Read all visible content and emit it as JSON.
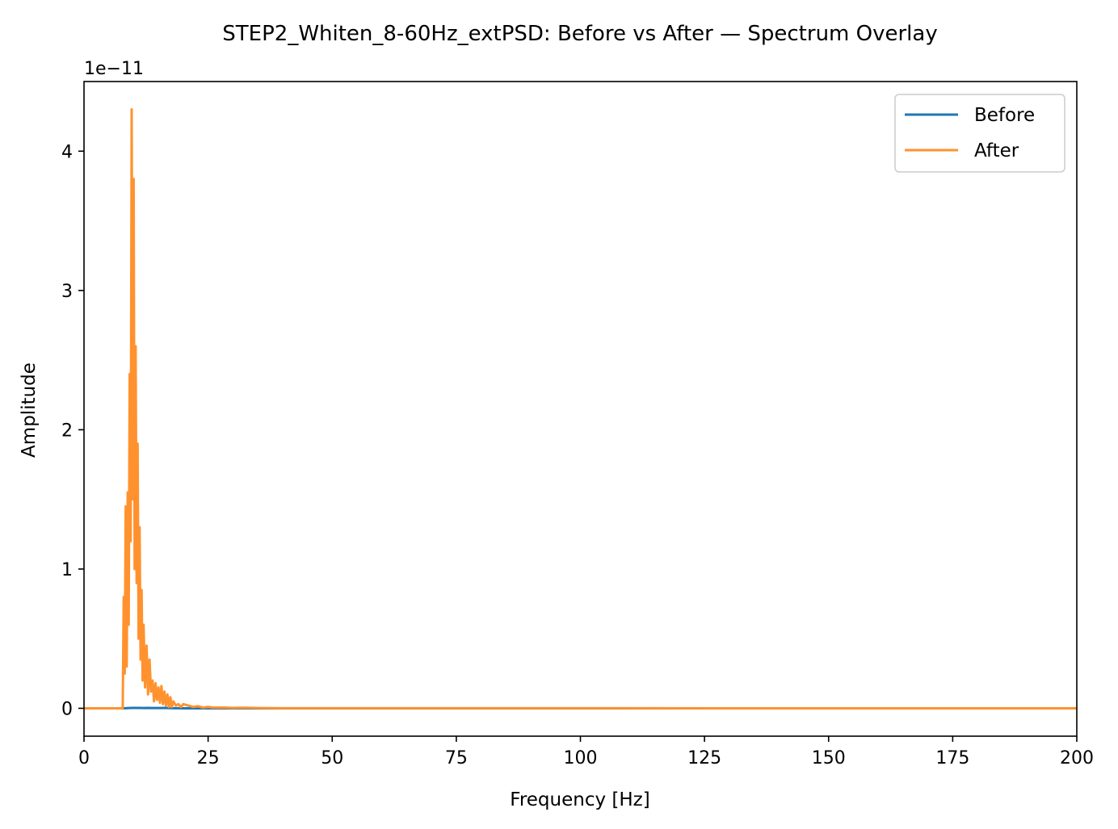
{
  "chart_data": {
    "type": "line",
    "title": "STEP2_Whiten_8-60Hz_extPSD: Before vs After — Spectrum Overlay",
    "xlabel": "Frequency [Hz]",
    "ylabel": "Amplitude",
    "offset_text": "1e−11",
    "xlim": [
      0,
      200
    ],
    "ylim": [
      -0.2,
      4.5
    ],
    "x_ticks": [
      0,
      25,
      50,
      75,
      100,
      125,
      150,
      175,
      200
    ],
    "x_tick_labels": [
      "0",
      "25",
      "50",
      "75",
      "100",
      "125",
      "150",
      "175",
      "200"
    ],
    "y_ticks": [
      0,
      1,
      2,
      3,
      4
    ],
    "y_tick_labels": [
      "0",
      "1",
      "2",
      "3",
      "4"
    ],
    "legend_position": "upper-right",
    "grid": false,
    "series": [
      {
        "name": "Before",
        "color": "#1f77b4",
        "x": [
          0,
          8,
          9,
          10,
          11,
          12,
          13,
          14,
          15,
          16,
          17,
          18,
          19,
          20,
          200
        ],
        "y": [
          0,
          0,
          0.002,
          0.003,
          0.003,
          0.002,
          0.003,
          0.002,
          0.002,
          0.003,
          0.002,
          0.001,
          0.001,
          0,
          0
        ]
      },
      {
        "name": "After",
        "color": "#ff922e",
        "x": [
          0,
          7.8,
          8.0,
          8.2,
          8.4,
          8.6,
          8.8,
          9.0,
          9.2,
          9.4,
          9.6,
          9.8,
          10.0,
          10.2,
          10.4,
          10.6,
          10.8,
          11.0,
          11.2,
          11.4,
          11.6,
          11.8,
          12.0,
          12.3,
          12.6,
          12.9,
          13.2,
          13.5,
          13.8,
          14.1,
          14.4,
          14.7,
          15.0,
          15.3,
          15.6,
          15.9,
          16.2,
          16.5,
          16.8,
          17.1,
          17.4,
          17.7,
          18.0,
          18.5,
          19.0,
          19.5,
          20.0,
          21.0,
          22.0,
          23.0,
          24.0,
          25.0,
          26.0,
          28.0,
          30.0,
          32.0,
          35.0,
          40.0,
          50.0,
          200.0
        ],
        "y": [
          0,
          0,
          0.8,
          0.25,
          1.45,
          0.3,
          1.55,
          0.6,
          2.4,
          1.2,
          4.3,
          1.5,
          3.8,
          1.0,
          2.6,
          0.9,
          1.9,
          0.5,
          1.3,
          0.35,
          0.85,
          0.2,
          0.6,
          0.15,
          0.45,
          0.1,
          0.35,
          0.12,
          0.2,
          0.05,
          0.18,
          0.06,
          0.15,
          0.04,
          0.16,
          0.03,
          0.12,
          0.02,
          0.1,
          0.01,
          0.08,
          0.01,
          0.05,
          0.02,
          0.03,
          0.01,
          0.03,
          0.02,
          0.01,
          0.015,
          0.005,
          0.01,
          0.005,
          0.006,
          0.003,
          0.004,
          0.002,
          0.001,
          0.0005,
          0
        ]
      }
    ]
  }
}
